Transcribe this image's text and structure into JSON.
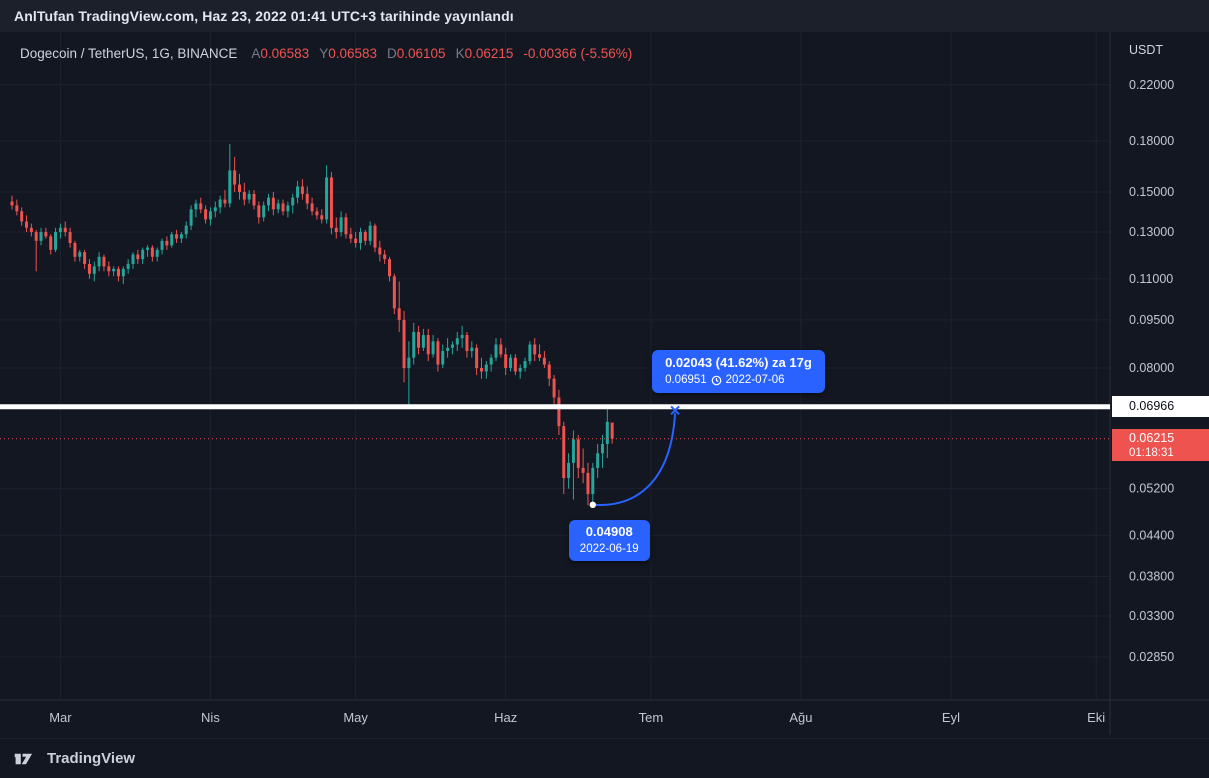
{
  "publish_bar": {
    "text": "AnlTufan TradingView.com, Haz 23, 2022 01:41 UTC+3 tarihinde yayınlandı"
  },
  "legend": {
    "title": "Dogecoin / TetherUS, 1G, BINANCE",
    "o_label": "A",
    "o": "0.06583",
    "h_label": "Y",
    "h": "0.06583",
    "l_label": "D",
    "l": "0.06105",
    "c_label": "K",
    "c": "0.06215",
    "change": "-0.00366 (-5.56%)"
  },
  "price_scale": {
    "currency": "USDT",
    "hline_label": "0.06966",
    "last_price": "0.06215",
    "countdown": "01:18:31"
  },
  "annotations": {
    "forecast": {
      "line1": "0.02043 (41.62%) za 17g",
      "price": "0.06951",
      "date": "2022-07-06"
    },
    "low": {
      "price": "0.04908",
      "date": "2022-06-19"
    }
  },
  "footer": {
    "brand": "TradingView"
  },
  "colors": {
    "background": "#131722",
    "up": "#26a69a",
    "down": "#ef5350",
    "accent": "#2962ff",
    "grid": "#1d2230",
    "separator": "#2a2e39",
    "axis_text": "#c3c7d0",
    "white_line": "#ffffff"
  },
  "chart_data": {
    "type": "candlestick",
    "title": "Dogecoin / TetherUS daily (BINANCE), log scale",
    "symbol": "DOGEUSDT",
    "interval": "1D",
    "scale": "log",
    "ylim": [
      0.0285,
      0.22
    ],
    "y_ticks": [
      0.22,
      0.18,
      0.15,
      0.13,
      0.11,
      0.095,
      0.08,
      0.052,
      0.044,
      0.038,
      0.033,
      0.0285
    ],
    "x_ticks": [
      {
        "label": "Mar",
        "date": "2022-03-01"
      },
      {
        "label": "Nis",
        "date": "2022-04-01"
      },
      {
        "label": "May",
        "date": "2022-05-01"
      },
      {
        "label": "Haz",
        "date": "2022-06-01"
      },
      {
        "label": "Tem",
        "date": "2022-07-01"
      },
      {
        "label": "Ağu",
        "date": "2022-08-01"
      },
      {
        "label": "Eyl",
        "date": "2022-09-01"
      },
      {
        "label": "Eki",
        "date": "2022-10-01"
      }
    ],
    "hline": 0.06966,
    "last_price": 0.06215,
    "forecast": {
      "from": {
        "date": "2022-06-19",
        "price": 0.04908
      },
      "to": {
        "date": "2022-07-06",
        "price": 0.06951
      },
      "change": 0.02043,
      "change_pct": 41.62,
      "days": 17
    },
    "candles": [
      [
        "2022-02-19",
        0.145,
        0.148,
        0.141,
        0.143
      ],
      [
        "2022-02-20",
        0.143,
        0.146,
        0.138,
        0.14
      ],
      [
        "2022-02-21",
        0.14,
        0.142,
        0.133,
        0.135
      ],
      [
        "2022-02-22",
        0.135,
        0.138,
        0.13,
        0.132
      ],
      [
        "2022-02-23",
        0.132,
        0.134,
        0.128,
        0.13
      ],
      [
        "2022-02-24",
        0.13,
        0.131,
        0.113,
        0.126
      ],
      [
        "2022-02-25",
        0.126,
        0.132,
        0.124,
        0.13
      ],
      [
        "2022-02-26",
        0.13,
        0.132,
        0.127,
        0.128
      ],
      [
        "2022-02-27",
        0.128,
        0.129,
        0.12,
        0.122
      ],
      [
        "2022-02-28",
        0.122,
        0.132,
        0.121,
        0.13
      ],
      [
        "2022-03-01",
        0.13,
        0.134,
        0.127,
        0.132
      ],
      [
        "2022-03-02",
        0.132,
        0.135,
        0.128,
        0.13
      ],
      [
        "2022-03-03",
        0.13,
        0.132,
        0.123,
        0.125
      ],
      [
        "2022-03-04",
        0.125,
        0.126,
        0.117,
        0.119
      ],
      [
        "2022-03-05",
        0.119,
        0.122,
        0.117,
        0.121
      ],
      [
        "2022-03-06",
        0.121,
        0.122,
        0.114,
        0.116
      ],
      [
        "2022-03-07",
        0.116,
        0.118,
        0.11,
        0.112
      ],
      [
        "2022-03-08",
        0.112,
        0.117,
        0.109,
        0.115
      ],
      [
        "2022-03-09",
        0.115,
        0.121,
        0.113,
        0.119
      ],
      [
        "2022-03-10",
        0.119,
        0.12,
        0.113,
        0.115
      ],
      [
        "2022-03-11",
        0.115,
        0.117,
        0.111,
        0.113
      ],
      [
        "2022-03-12",
        0.113,
        0.115,
        0.111,
        0.114
      ],
      [
        "2022-03-13",
        0.114,
        0.115,
        0.109,
        0.111
      ],
      [
        "2022-03-14",
        0.111,
        0.115,
        0.108,
        0.114
      ],
      [
        "2022-03-15",
        0.114,
        0.118,
        0.112,
        0.116
      ],
      [
        "2022-03-16",
        0.116,
        0.121,
        0.114,
        0.12
      ],
      [
        "2022-03-17",
        0.12,
        0.122,
        0.116,
        0.118
      ],
      [
        "2022-03-18",
        0.118,
        0.123,
        0.116,
        0.122
      ],
      [
        "2022-03-19",
        0.122,
        0.124,
        0.119,
        0.123
      ],
      [
        "2022-03-20",
        0.123,
        0.124,
        0.117,
        0.119
      ],
      [
        "2022-03-21",
        0.119,
        0.123,
        0.117,
        0.122
      ],
      [
        "2022-03-22",
        0.122,
        0.127,
        0.12,
        0.126
      ],
      [
        "2022-03-23",
        0.126,
        0.128,
        0.122,
        0.124
      ],
      [
        "2022-03-24",
        0.124,
        0.13,
        0.123,
        0.129
      ],
      [
        "2022-03-25",
        0.129,
        0.131,
        0.125,
        0.127
      ],
      [
        "2022-03-26",
        0.127,
        0.13,
        0.125,
        0.129
      ],
      [
        "2022-03-27",
        0.129,
        0.135,
        0.127,
        0.133
      ],
      [
        "2022-03-28",
        0.133,
        0.143,
        0.131,
        0.141
      ],
      [
        "2022-03-29",
        0.141,
        0.146,
        0.137,
        0.144
      ],
      [
        "2022-03-30",
        0.144,
        0.147,
        0.139,
        0.141
      ],
      [
        "2022-03-31",
        0.141,
        0.143,
        0.134,
        0.136
      ],
      [
        "2022-04-01",
        0.136,
        0.142,
        0.133,
        0.14
      ],
      [
        "2022-04-02",
        0.14,
        0.145,
        0.137,
        0.142
      ],
      [
        "2022-04-03",
        0.142,
        0.148,
        0.139,
        0.146
      ],
      [
        "2022-04-04",
        0.146,
        0.151,
        0.142,
        0.144
      ],
      [
        "2022-04-05",
        0.144,
        0.178,
        0.142,
        0.162
      ],
      [
        "2022-04-06",
        0.162,
        0.17,
        0.15,
        0.154
      ],
      [
        "2022-04-07",
        0.154,
        0.16,
        0.146,
        0.15
      ],
      [
        "2022-04-08",
        0.15,
        0.155,
        0.143,
        0.146
      ],
      [
        "2022-04-09",
        0.146,
        0.151,
        0.144,
        0.149
      ],
      [
        "2022-04-10",
        0.149,
        0.151,
        0.141,
        0.143
      ],
      [
        "2022-04-11",
        0.143,
        0.145,
        0.134,
        0.137
      ],
      [
        "2022-04-12",
        0.137,
        0.145,
        0.135,
        0.143
      ],
      [
        "2022-04-13",
        0.143,
        0.149,
        0.14,
        0.147
      ],
      [
        "2022-04-14",
        0.147,
        0.15,
        0.138,
        0.141
      ],
      [
        "2022-04-15",
        0.141,
        0.146,
        0.139,
        0.144
      ],
      [
        "2022-04-16",
        0.144,
        0.146,
        0.138,
        0.14
      ],
      [
        "2022-04-17",
        0.14,
        0.145,
        0.137,
        0.143
      ],
      [
        "2022-04-18",
        0.143,
        0.149,
        0.139,
        0.147
      ],
      [
        "2022-04-19",
        0.147,
        0.156,
        0.144,
        0.153
      ],
      [
        "2022-04-20",
        0.153,
        0.157,
        0.146,
        0.149
      ],
      [
        "2022-04-21",
        0.149,
        0.153,
        0.141,
        0.144
      ],
      [
        "2022-04-22",
        0.144,
        0.147,
        0.138,
        0.14
      ],
      [
        "2022-04-23",
        0.14,
        0.142,
        0.136,
        0.138
      ],
      [
        "2022-04-24",
        0.138,
        0.141,
        0.134,
        0.136
      ],
      [
        "2022-04-25",
        0.136,
        0.165,
        0.134,
        0.158
      ],
      [
        "2022-04-26",
        0.158,
        0.161,
        0.129,
        0.132
      ],
      [
        "2022-04-27",
        0.132,
        0.137,
        0.127,
        0.13
      ],
      [
        "2022-04-28",
        0.13,
        0.14,
        0.128,
        0.137
      ],
      [
        "2022-04-29",
        0.137,
        0.139,
        0.127,
        0.129
      ],
      [
        "2022-04-30",
        0.129,
        0.132,
        0.125,
        0.127
      ],
      [
        "2022-05-01",
        0.127,
        0.13,
        0.123,
        0.125
      ],
      [
        "2022-05-02",
        0.125,
        0.132,
        0.122,
        0.13
      ],
      [
        "2022-05-03",
        0.13,
        0.131,
        0.124,
        0.126
      ],
      [
        "2022-05-04",
        0.126,
        0.135,
        0.124,
        0.133
      ],
      [
        "2022-05-05",
        0.133,
        0.134,
        0.121,
        0.123
      ],
      [
        "2022-05-06",
        0.123,
        0.126,
        0.117,
        0.12
      ],
      [
        "2022-05-07",
        0.12,
        0.122,
        0.116,
        0.118
      ],
      [
        "2022-05-08",
        0.118,
        0.119,
        0.109,
        0.111
      ],
      [
        "2022-05-09",
        0.111,
        0.112,
        0.097,
        0.099
      ],
      [
        "2022-05-10",
        0.099,
        0.109,
        0.091,
        0.095
      ],
      [
        "2022-05-11",
        0.095,
        0.098,
        0.076,
        0.08
      ],
      [
        "2022-05-12",
        0.08,
        0.088,
        0.0697,
        0.083
      ],
      [
        "2022-05-13",
        0.083,
        0.094,
        0.081,
        0.091
      ],
      [
        "2022-05-14",
        0.091,
        0.093,
        0.084,
        0.086
      ],
      [
        "2022-05-15",
        0.086,
        0.092,
        0.085,
        0.09
      ],
      [
        "2022-05-16",
        0.09,
        0.092,
        0.082,
        0.084
      ],
      [
        "2022-05-17",
        0.084,
        0.09,
        0.083,
        0.088
      ],
      [
        "2022-05-18",
        0.088,
        0.089,
        0.079,
        0.081
      ],
      [
        "2022-05-19",
        0.081,
        0.087,
        0.08,
        0.085
      ],
      [
        "2022-05-20",
        0.085,
        0.089,
        0.083,
        0.086
      ],
      [
        "2022-05-21",
        0.086,
        0.088,
        0.084,
        0.087
      ],
      [
        "2022-05-22",
        0.087,
        0.091,
        0.085,
        0.089
      ],
      [
        "2022-05-23",
        0.089,
        0.093,
        0.086,
        0.09
      ],
      [
        "2022-05-24",
        0.09,
        0.091,
        0.083,
        0.085
      ],
      [
        "2022-05-25",
        0.085,
        0.088,
        0.083,
        0.086
      ],
      [
        "2022-05-26",
        0.086,
        0.087,
        0.078,
        0.08
      ],
      [
        "2022-05-27",
        0.08,
        0.083,
        0.077,
        0.079
      ],
      [
        "2022-05-28",
        0.079,
        0.082,
        0.077,
        0.081
      ],
      [
        "2022-05-29",
        0.081,
        0.084,
        0.079,
        0.083
      ],
      [
        "2022-05-30",
        0.083,
        0.089,
        0.082,
        0.087
      ],
      [
        "2022-05-31",
        0.087,
        0.089,
        0.083,
        0.084
      ],
      [
        "2022-06-01",
        0.084,
        0.086,
        0.078,
        0.08
      ],
      [
        "2022-06-02",
        0.08,
        0.084,
        0.079,
        0.083
      ],
      [
        "2022-06-03",
        0.083,
        0.084,
        0.078,
        0.079
      ],
      [
        "2022-06-04",
        0.079,
        0.081,
        0.077,
        0.08
      ],
      [
        "2022-06-05",
        0.08,
        0.083,
        0.079,
        0.082
      ],
      [
        "2022-06-06",
        0.082,
        0.088,
        0.081,
        0.087
      ],
      [
        "2022-06-07",
        0.087,
        0.089,
        0.082,
        0.084
      ],
      [
        "2022-06-08",
        0.084,
        0.087,
        0.082,
        0.083
      ],
      [
        "2022-06-09",
        0.083,
        0.085,
        0.08,
        0.081
      ],
      [
        "2022-06-10",
        0.081,
        0.082,
        0.075,
        0.077
      ],
      [
        "2022-06-11",
        0.077,
        0.078,
        0.07,
        0.072
      ],
      [
        "2022-06-12",
        0.072,
        0.074,
        0.063,
        0.065
      ],
      [
        "2022-06-13",
        0.065,
        0.066,
        0.051,
        0.054
      ],
      [
        "2022-06-14",
        0.054,
        0.059,
        0.052,
        0.057
      ],
      [
        "2022-06-15",
        0.057,
        0.064,
        0.05,
        0.062
      ],
      [
        "2022-06-16",
        0.062,
        0.063,
        0.054,
        0.056
      ],
      [
        "2022-06-17",
        0.056,
        0.06,
        0.053,
        0.055
      ],
      [
        "2022-06-18",
        0.055,
        0.057,
        0.049,
        0.051
      ],
      [
        "2022-06-19",
        0.051,
        0.057,
        0.04908,
        0.056
      ],
      [
        "2022-06-20",
        0.056,
        0.061,
        0.054,
        0.059
      ],
      [
        "2022-06-21",
        0.059,
        0.063,
        0.056,
        0.061
      ],
      [
        "2022-06-22",
        0.061,
        0.07,
        0.058,
        0.066
      ],
      [
        "2022-06-23",
        0.06583,
        0.06583,
        0.06105,
        0.06215
      ]
    ]
  }
}
